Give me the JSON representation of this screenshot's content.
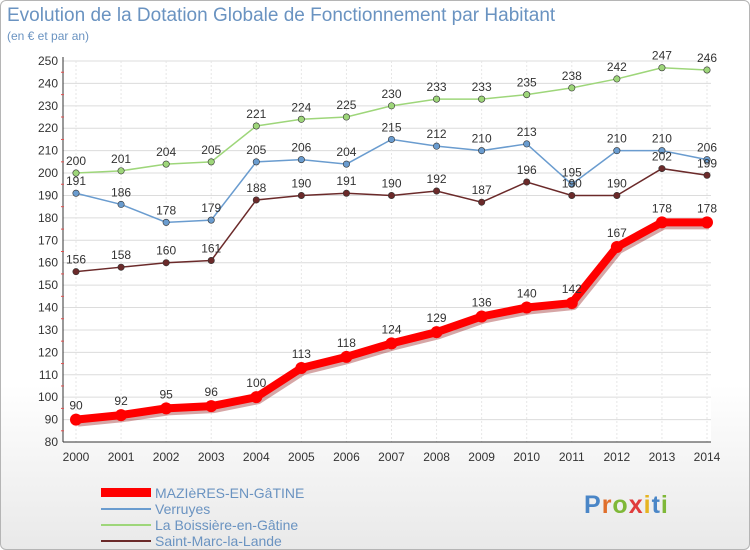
{
  "header": {
    "title": "Evolution de la Dotation Globale de Fonctionnement par Habitant",
    "subtitle": "(en € et par an)"
  },
  "brand": {
    "logo_text": "Proxiti",
    "letter_colors": [
      "#4a86c7",
      "#e06f2c",
      "#7fb838",
      "#e03c3c",
      "#e6b421",
      "#4a86c7",
      "#7fb838"
    ]
  },
  "chart_data": {
    "type": "line",
    "title": "Evolution de la Dotation Globale de Fonctionnement par Habitant",
    "subtitle": "(en € et par an)",
    "xlabel": "",
    "ylabel": "",
    "categories": [
      "2000",
      "2001",
      "2002",
      "2003",
      "2004",
      "2005",
      "2006",
      "2007",
      "2008",
      "2009",
      "2010",
      "2011",
      "2012",
      "2013",
      "2014"
    ],
    "ylim": [
      80,
      250
    ],
    "yticks": [
      80,
      90,
      100,
      110,
      120,
      130,
      140,
      150,
      160,
      170,
      180,
      190,
      200,
      210,
      220,
      230,
      240,
      250
    ],
    "grid": true,
    "legend_position": "bottom-left",
    "series": [
      {
        "name": "MAZIèRES-EN-GâTINE",
        "color": "#ff0000",
        "emphasis": true,
        "values": [
          90,
          92,
          95,
          96,
          100,
          113,
          118,
          124,
          129,
          136,
          140,
          142,
          167,
          178,
          178
        ]
      },
      {
        "name": "Verruyes",
        "color": "#6a9ccf",
        "emphasis": false,
        "values": [
          191,
          186,
          178,
          179,
          205,
          206,
          204,
          215,
          212,
          210,
          213,
          195,
          210,
          210,
          206
        ]
      },
      {
        "name": "La Boissière-en-Gâtine",
        "color": "#9ed67a",
        "emphasis": false,
        "values": [
          200,
          201,
          204,
          205,
          221,
          224,
          225,
          230,
          233,
          233,
          235,
          238,
          242,
          247,
          246
        ]
      },
      {
        "name": "Saint-Marc-la-Lande",
        "color": "#6b2a2a",
        "emphasis": false,
        "values": [
          156,
          158,
          160,
          161,
          188,
          190,
          191,
          190,
          192,
          187,
          196,
          190,
          190,
          202,
          199
        ]
      }
    ]
  }
}
